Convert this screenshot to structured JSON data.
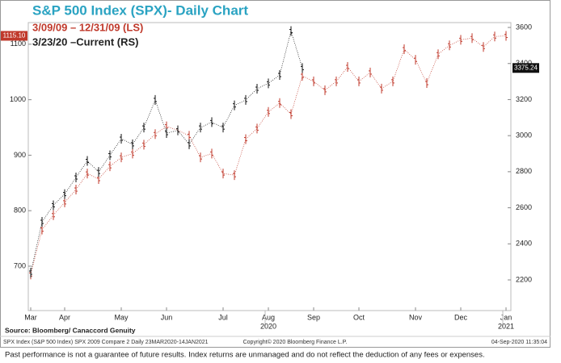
{
  "chart_data": {
    "type": "ohlc-line",
    "title": "S&P 500 Index (SPX)- Daily Chart",
    "categories": [
      "Mar",
      null,
      null,
      "Apr",
      null,
      null,
      null,
      null,
      "May",
      null,
      null,
      null,
      "Jun",
      null,
      null,
      null,
      null,
      "Jul",
      null,
      null,
      null,
      "Aug",
      null,
      null,
      null,
      "Sep",
      null,
      null,
      null,
      "Oct",
      null,
      null,
      null,
      null,
      "Nov",
      null,
      null,
      null,
      "Dec",
      null,
      null,
      null,
      "Jan"
    ],
    "year_labels": [
      {
        "category_index": 21,
        "label": "2020"
      },
      {
        "category_index": 42,
        "label": "2021"
      }
    ],
    "series": [
      {
        "name": "3/09/09 – 12/31/09 (LS)",
        "color": "#c0392b",
        "axis": "y",
        "values": [
          685,
          766,
          792,
          815,
          838,
          867,
          857,
          880,
          896,
          903,
          919,
          938,
          952,
          945,
          935,
          896,
          903,
          867,
          864,
          929,
          948,
          978,
          994,
          974,
          1043,
          1033,
          1017,
          1033,
          1059,
          1033,
          1049,
          1020,
          1033,
          1091,
          1072,
          1030,
          1082,
          1098,
          1108,
          1111,
          1095,
          1114,
          1115
        ]
      },
      {
        "name": "3/23/20 –Current (RS)",
        "color": "#111111",
        "axis": "y2",
        "values": [
          2240,
          2522,
          2614,
          2676,
          2768,
          2860,
          2799,
          2891,
          2983,
          2952,
          3045,
          3198,
          3014,
          3029,
          2952,
          3045,
          3075,
          3045,
          3168,
          3198,
          3260,
          3290,
          3336,
          3580,
          3375,
          null,
          null,
          null,
          null,
          null,
          null,
          null,
          null,
          null,
          null,
          null,
          null,
          null,
          null,
          null,
          null,
          null,
          null
        ]
      }
    ],
    "last_values": [
      {
        "value": 1115.1,
        "label": "1115.10",
        "axis": "y"
      },
      {
        "value": 3375.24,
        "label": "3375.24",
        "axis": "y2"
      }
    ],
    "ylim": [
      620,
      1139
    ],
    "yticks": [
      700,
      800,
      900,
      1000,
      1100
    ],
    "y2lim": [
      2030,
      3627
    ],
    "y2ticks": [
      2200,
      2400,
      2600,
      2800,
      3000,
      3200,
      3400,
      3600
    ],
    "source": "Source: Bloomberg/ Canaccord Genuity",
    "footer_left": "SPX Index (S&P 500 Index) SPX 2009 Compare 2  Daily 23MAR2020-14JAN2021",
    "footer_center": "Copyright© 2020 Bloomberg Finance L.P.",
    "footer_right": "04-Sep-2020 11:35:04",
    "disclaimer": "Past performance is not a guarantee of future results. Index returns are unmanaged  and do not reflect the deduction of any fees or expenses."
  }
}
